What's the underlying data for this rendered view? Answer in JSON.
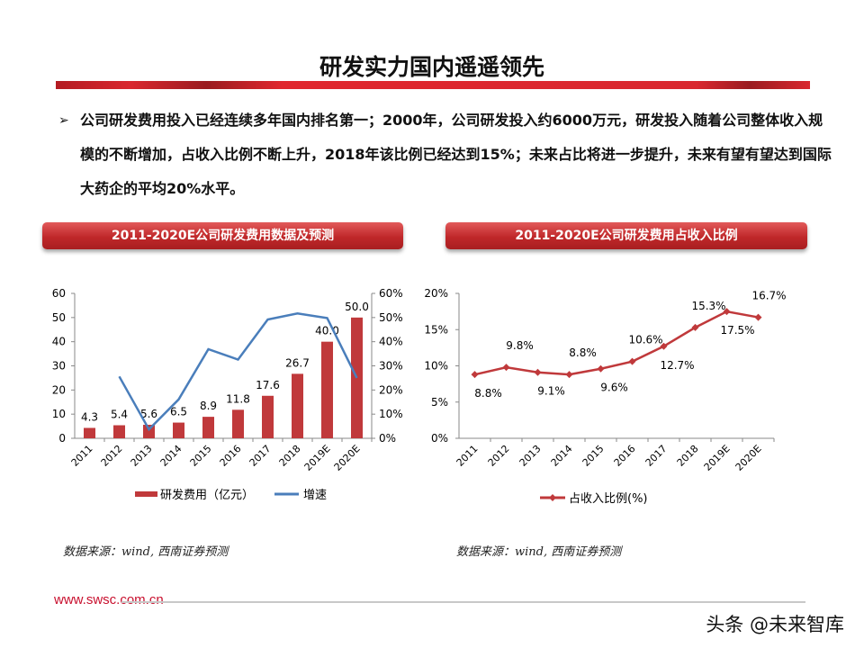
{
  "header": {
    "title": "研发实力国内遥遥领先"
  },
  "bullet": {
    "marker": "➢",
    "text": "公司研发费用投入已经连续多年国内排名第一；2000年，公司研发投入约6000万元，研发投入随着公司整体收入规模的不断增加，占收入比例不断上升，2018年该比例已经达到15%；未来占比将进一步提升，未来有望有望达到国际大药企的平均20%水平。"
  },
  "sections": [
    {
      "label": "2011-2020E公司研发费用数据及预测"
    },
    {
      "label": "2011-2020E公司研发费用占收入比例"
    }
  ],
  "chart_data": [
    {
      "type": "bar+line",
      "categories": [
        "2011",
        "2012",
        "2013",
        "2014",
        "2015",
        "2016",
        "2017",
        "2018",
        "2019E",
        "2020E"
      ],
      "series": [
        {
          "name": "研发费用（亿元）",
          "type": "bar",
          "axis": "left",
          "color": "#c0393b",
          "values": [
            4.3,
            5.4,
            5.6,
            6.5,
            8.9,
            11.8,
            17.6,
            26.7,
            40.0,
            50.0
          ],
          "labels": [
            "4.3",
            "5.4",
            "5.6",
            "6.5",
            "8.9",
            "11.8",
            "17.6",
            "26.7",
            "40.0",
            "50.0"
          ]
        },
        {
          "name": "增速",
          "type": "line",
          "axis": "right",
          "color": "#4a7ebb",
          "values": [
            null,
            25.6,
            3.7,
            16.1,
            36.9,
            32.6,
            49.2,
            51.7,
            49.8,
            25.0
          ]
        }
      ],
      "ylim": [
        0,
        60
      ],
      "yticks": [
        "0",
        "10",
        "20",
        "30",
        "40",
        "50",
        "60"
      ],
      "y2lim": [
        0,
        60
      ],
      "y2ticks": [
        "0%",
        "10%",
        "20%",
        "30%",
        "40%",
        "50%",
        "60%"
      ],
      "legend": "bottom"
    },
    {
      "type": "line",
      "categories": [
        "2011",
        "2012",
        "2013",
        "2014",
        "2015",
        "2016",
        "2017",
        "2018",
        "2019E",
        "2020E"
      ],
      "series": [
        {
          "name": "占收入比例(%)",
          "color": "#c0393b",
          "marker": "diamond",
          "values": [
            8.8,
            9.8,
            9.1,
            8.8,
            9.6,
            10.6,
            12.7,
            15.3,
            17.5,
            16.7
          ],
          "labels": [
            "8.8%",
            "9.8%",
            "9.1%",
            "8.8%",
            "9.6%",
            "10.6%",
            "12.7%",
            "15.3%",
            "17.5%",
            "16.7%"
          ]
        }
      ],
      "ylim": [
        0,
        20
      ],
      "yticks": [
        "0%",
        "5%",
        "10%",
        "15%",
        "20%"
      ],
      "legend": "bottom"
    }
  ],
  "sources": [
    "数据来源：wind, 西南证券预测",
    "数据来源：wind, 西南证券预测"
  ],
  "footer": {
    "url": "www.swsc.com.cn",
    "watermark": "头条 @未来智库"
  }
}
